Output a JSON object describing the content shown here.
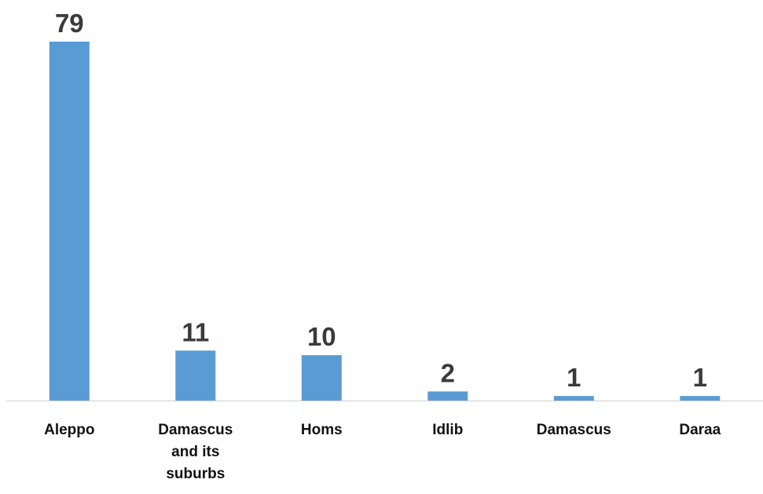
{
  "chart_data": {
    "type": "bar",
    "categories": [
      "Aleppo",
      "Damascus and its suburbs",
      "Homs",
      "Idlib",
      "Damascus",
      "Daraa"
    ],
    "category_lines": [
      [
        "Aleppo"
      ],
      [
        "Damascus",
        "and its",
        "suburbs"
      ],
      [
        "Homs"
      ],
      [
        "Idlib"
      ],
      [
        "Damascus"
      ],
      [
        "Daraa"
      ]
    ],
    "values": [
      79,
      11,
      10,
      2,
      1,
      1
    ],
    "title": "",
    "xlabel": "",
    "ylabel": "",
    "ylim": [
      0,
      79
    ],
    "grid": false,
    "legend": "none",
    "bar_color": "#5b9bd5",
    "axis_color": "#d0d0d0",
    "data_labels": true
  }
}
